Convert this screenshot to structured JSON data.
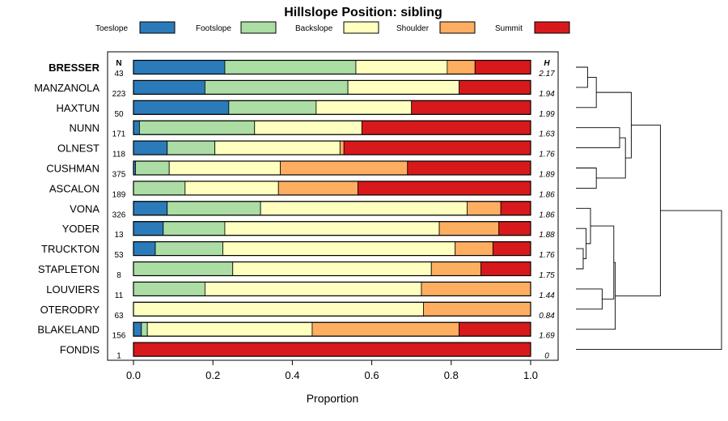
{
  "chart_data": {
    "type": "bar",
    "stacked": true,
    "orientation": "horizontal",
    "title": "Hillslope Position: sibling",
    "xlabel": "Proportion",
    "xlim": [
      0,
      1
    ],
    "xticks": [
      "0.0",
      "0.2",
      "0.4",
      "0.6",
      "0.8",
      "1.0"
    ],
    "n_header": "N",
    "h_header": "H",
    "legend_position": "top",
    "series": [
      {
        "name": "Toeslope",
        "color": "#2b7bba"
      },
      {
        "name": "Footslope",
        "color": "#abdda4"
      },
      {
        "name": "Backslope",
        "color": "#ffffbf"
      },
      {
        "name": "Shoulder",
        "color": "#fdae61"
      },
      {
        "name": "Summit",
        "color": "#d7191c"
      }
    ],
    "rows": [
      {
        "label": "BRESSER",
        "bold": true,
        "n": "43",
        "h": "2.17",
        "values": [
          0.23,
          0.33,
          0.23,
          0.07,
          0.14
        ]
      },
      {
        "label": "MANZANOLA",
        "n": "223",
        "h": "1.94",
        "values": [
          0.18,
          0.36,
          0.28,
          0.0,
          0.18
        ]
      },
      {
        "label": "HAXTUN",
        "n": "50",
        "h": "1.99",
        "values": [
          0.24,
          0.22,
          0.24,
          0.0,
          0.3
        ]
      },
      {
        "label": "NUNN",
        "n": "171",
        "h": "1.63",
        "values": [
          0.015,
          0.29,
          0.27,
          0.0,
          0.425
        ]
      },
      {
        "label": "OLNEST",
        "n": "118",
        "h": "1.76",
        "values": [
          0.085,
          0.12,
          0.315,
          0.01,
          0.47
        ]
      },
      {
        "label": "CUSHMAN",
        "n": "375",
        "h": "1.89",
        "values": [
          0.005,
          0.085,
          0.28,
          0.32,
          0.31
        ]
      },
      {
        "label": "ASCALON",
        "n": "189",
        "h": "1.86",
        "values": [
          0.0,
          0.13,
          0.235,
          0.2,
          0.435
        ]
      },
      {
        "label": "VONA",
        "n": "326",
        "h": "1.86",
        "values": [
          0.085,
          0.235,
          0.52,
          0.085,
          0.075
        ]
      },
      {
        "label": "YODER",
        "n": "13",
        "h": "1.88",
        "values": [
          0.075,
          0.155,
          0.54,
          0.15,
          0.08
        ]
      },
      {
        "label": "TRUCKTON",
        "n": "53",
        "h": "1.76",
        "values": [
          0.055,
          0.17,
          0.585,
          0.095,
          0.095
        ]
      },
      {
        "label": "STAPLETON",
        "n": "8",
        "h": "1.75",
        "values": [
          0.0,
          0.25,
          0.5,
          0.125,
          0.125
        ]
      },
      {
        "label": "LOUVIERS",
        "n": "11",
        "h": "1.44",
        "values": [
          0.0,
          0.18,
          0.545,
          0.275,
          0.0
        ]
      },
      {
        "label": "OTERODRY",
        "n": "63",
        "h": "0.84",
        "values": [
          0.0,
          0.0,
          0.73,
          0.27,
          0.0
        ]
      },
      {
        "label": "BLAKELAND",
        "n": "156",
        "h": "1.69",
        "values": [
          0.02,
          0.015,
          0.415,
          0.37,
          0.18
        ]
      },
      {
        "label": "FONDIS",
        "n": "1",
        "h": "0",
        "values": [
          0.0,
          0.0,
          0.0,
          0.0,
          1.0
        ]
      }
    ],
    "dendrogram": [
      {
        "a": 0,
        "b": 1,
        "h": 0.08
      },
      {
        "a": "c0",
        "b": 2,
        "h": 0.14
      },
      {
        "a": 3,
        "b": 4,
        "h": 0.3
      },
      {
        "a": 5,
        "b": 6,
        "h": 0.14
      },
      {
        "a": "c2",
        "b": "c3",
        "h": 0.34
      },
      {
        "a": "c1",
        "b": "c4",
        "h": 0.38
      },
      {
        "a": 9,
        "b": 10,
        "h": 0.05
      },
      {
        "a": 8,
        "b": "c6",
        "h": 0.07
      },
      {
        "a": 7,
        "b": "c7",
        "h": 0.1
      },
      {
        "a": 11,
        "b": 12,
        "h": 0.18
      },
      {
        "a": "c8",
        "b": "c9",
        "h": 0.26
      },
      {
        "a": "c10",
        "b": 13,
        "h": 0.27
      },
      {
        "a": "c5",
        "b": "c11",
        "h": 0.58
      },
      {
        "a": "c12",
        "b": 14,
        "h": 1.0
      }
    ]
  }
}
